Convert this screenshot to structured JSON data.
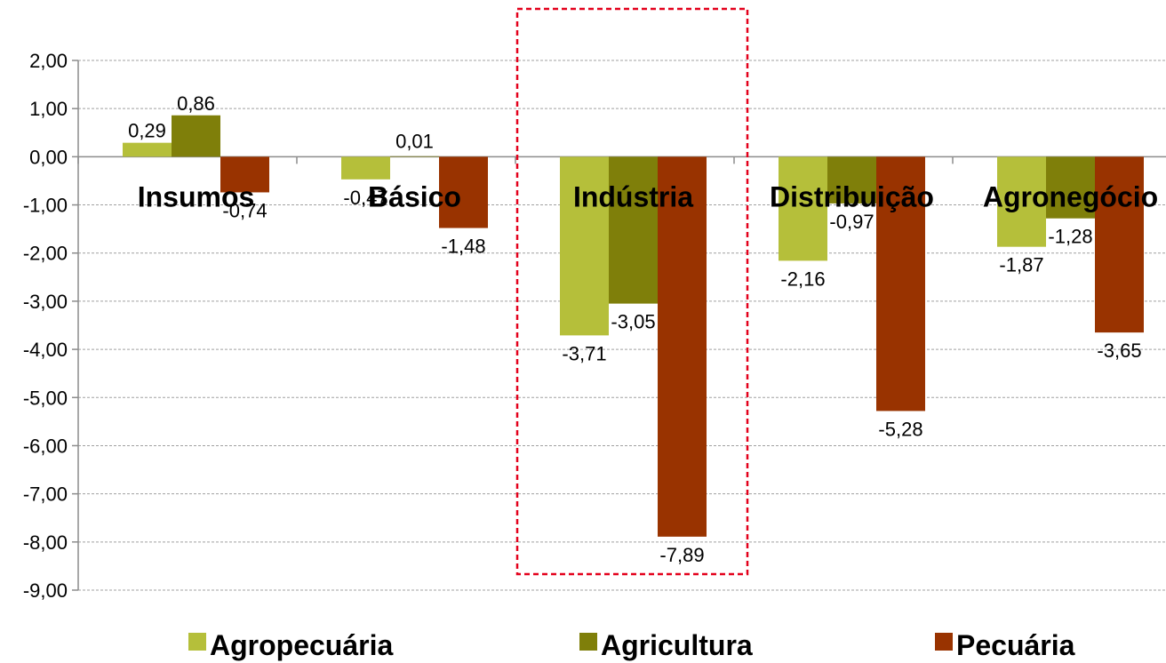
{
  "chart_data": {
    "type": "bar",
    "categories": [
      "Insumos",
      "Básico",
      "Indústria",
      "Distribuição",
      "Agronegócio"
    ],
    "series": [
      {
        "name": "Agropecuária",
        "color": "#b5bf3a",
        "values": [
          0.29,
          -0.47,
          -3.71,
          -2.16,
          -1.87
        ],
        "labels": [
          "0,29",
          "-0,47",
          "-3,71",
          "-2,16",
          "-1,87"
        ]
      },
      {
        "name": "Agricultura",
        "color": "#7f7f0a",
        "values": [
          0.86,
          0.01,
          -3.05,
          -0.97,
          -1.28
        ],
        "labels": [
          "0,86",
          "0,01",
          "-3,05",
          "-0,97",
          "-1,28"
        ]
      },
      {
        "name": "Pecuária",
        "color": "#993300",
        "values": [
          -0.74,
          -1.48,
          -7.89,
          -5.28,
          -3.65
        ],
        "labels": [
          "-0,74",
          "-1,48",
          "-7,89",
          "-5,28",
          "-3,65"
        ]
      }
    ],
    "ylim": [
      -9,
      2
    ],
    "yticks": [
      2,
      1,
      0,
      -1,
      -2,
      -3,
      -4,
      -5,
      -6,
      -7,
      -8,
      -9
    ],
    "ytick_labels": [
      "2,00",
      "1,00",
      "0,00",
      "-1,00",
      "-2,00",
      "-3,00",
      "-4,00",
      "-5,00",
      "-6,00",
      "-7,00",
      "-8,00",
      "-9,00"
    ],
    "grid": "horizontal-dashed",
    "legend_position": "bottom",
    "highlight": {
      "category": "Indústria",
      "style": "red-dashed-box",
      "color": "#e3001b"
    }
  }
}
